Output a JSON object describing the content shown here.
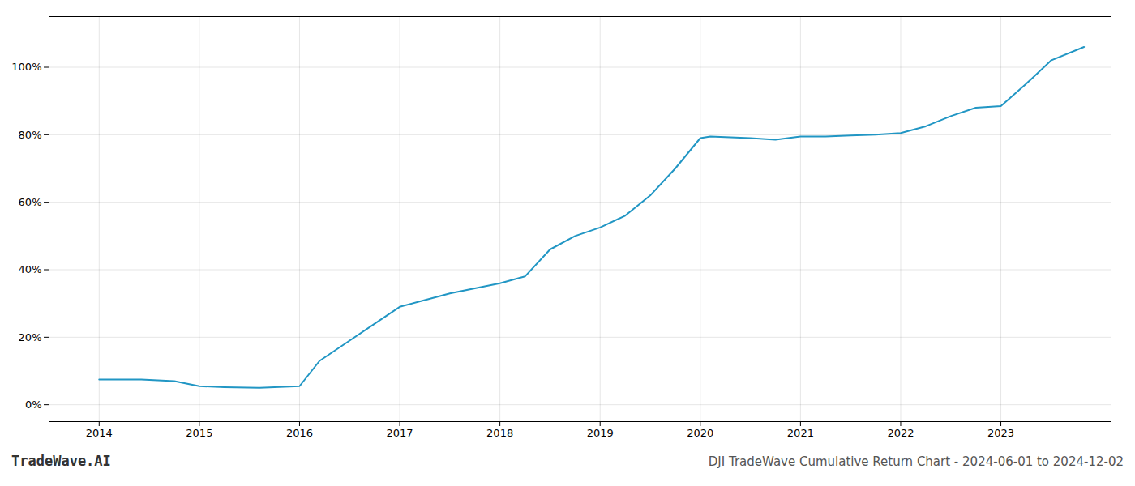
{
  "chart_data": {
    "type": "line",
    "title": "DJI TradeWave Cumulative Return Chart - 2024-06-01 to 2024-12-02",
    "annotations": [
      "TradeWave.AI"
    ],
    "x": [
      2014.0,
      2014.42,
      2014.75,
      2015.0,
      2015.25,
      2015.6,
      2016.0,
      2016.2,
      2016.5,
      2016.75,
      2017.0,
      2017.25,
      2017.5,
      2017.75,
      2018.0,
      2018.25,
      2018.5,
      2018.75,
      2019.0,
      2019.25,
      2019.5,
      2019.75,
      2020.0,
      2020.1,
      2020.5,
      2020.75,
      2021.0,
      2021.25,
      2021.5,
      2021.75,
      2022.0,
      2022.25,
      2022.5,
      2022.75,
      2023.0,
      2023.25,
      2023.5,
      2023.83
    ],
    "values": [
      7.5,
      7.5,
      7.0,
      5.5,
      5.2,
      5.0,
      5.5,
      13.0,
      19.0,
      24.0,
      29.0,
      31.0,
      33.0,
      34.5,
      36.0,
      38.0,
      46.0,
      50.0,
      52.5,
      56.0,
      62.0,
      70.0,
      79.0,
      79.5,
      79.0,
      78.5,
      79.5,
      79.5,
      79.8,
      80.0,
      80.5,
      82.5,
      85.5,
      88.0,
      88.5,
      95.0,
      102.0,
      106.0
    ],
    "color": "#2196c4",
    "xlim": [
      2013.5,
      2024.1
    ],
    "xticks": [
      2014,
      2015,
      2016,
      2017,
      2018,
      2019,
      2020,
      2021,
      2022,
      2023
    ],
    "ylim": [
      -5,
      115
    ],
    "yticks": [
      {
        "value": 0,
        "label": "0%"
      },
      {
        "value": 20,
        "label": "20%"
      },
      {
        "value": 40,
        "label": "40%"
      },
      {
        "value": 60,
        "label": "60%"
      },
      {
        "value": 80,
        "label": "80%"
      },
      {
        "value": 100,
        "label": "100%"
      }
    ],
    "grid": true
  }
}
